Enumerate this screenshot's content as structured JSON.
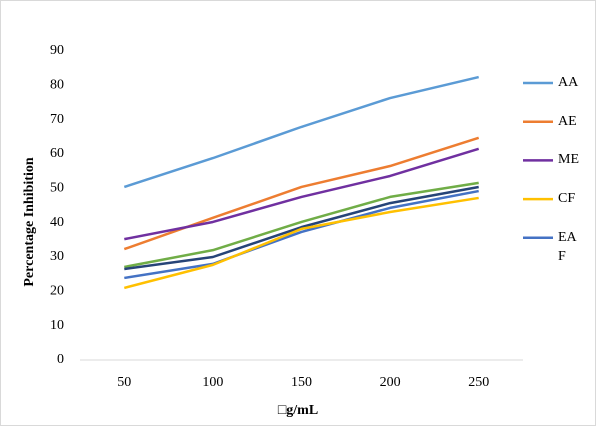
{
  "chart_data": {
    "type": "line",
    "x_label": "□g/mL",
    "y_label": "Percentage Inhibition",
    "categories": [
      "50",
      "100",
      "150",
      "200",
      "250"
    ],
    "ylim": [
      0,
      90
    ],
    "yticks": [
      0,
      10,
      20,
      30,
      40,
      50,
      60,
      70,
      80,
      90
    ],
    "grid": false,
    "legend": "right",
    "series": [
      {
        "name": "AA",
        "color": "#5b9bd5",
        "values": [
          50.4,
          58.8,
          67.9,
          76.3,
          82.4
        ]
      },
      {
        "name": "AE",
        "color": "#ed7d31",
        "values": [
          32.3,
          41.4,
          50.4,
          56.5,
          64.7
        ]
      },
      {
        "name": "ME",
        "color": "#7030a0",
        "values": [
          35.2,
          40.2,
          47.5,
          53.6,
          61.5
        ]
      },
      {
        "name": "CF",
        "color": "#ffc000",
        "values": [
          21.0,
          27.7,
          38.2,
          43.1,
          47.2
        ]
      },
      {
        "name": "EAF",
        "color": "#4472c4",
        "values": [
          23.9,
          28.0,
          37.3,
          44.3,
          49.2
        ]
      },
      {
        "color": "#70ad47",
        "values": [
          27.1,
          32.0,
          40.2,
          47.5,
          51.6
        ]
      },
      {
        "color": "#264478",
        "values": [
          26.5,
          30.0,
          38.7,
          45.7,
          50.4
        ]
      }
    ]
  }
}
